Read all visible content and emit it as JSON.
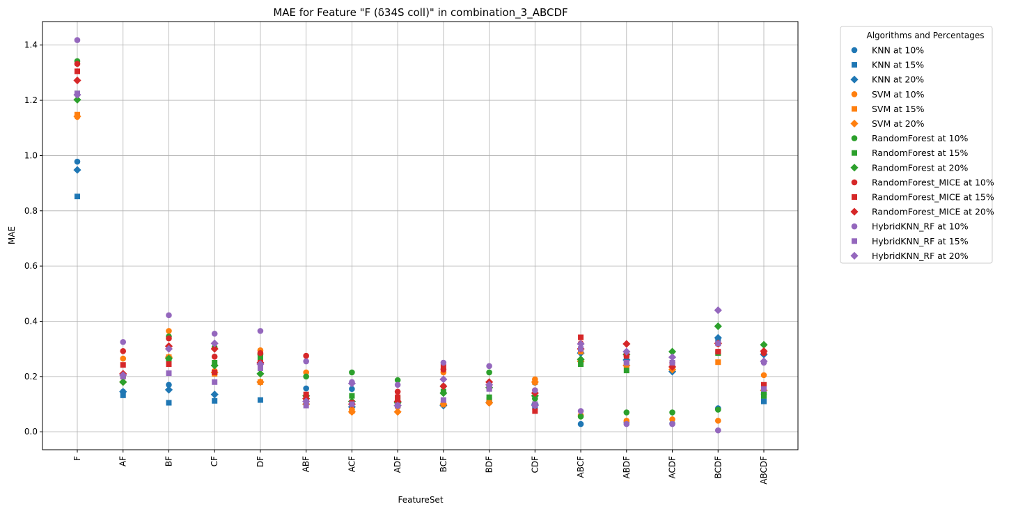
{
  "chart_data": {
    "type": "scatter",
    "title": "MAE for Feature \"F (δ34S coll)\" in combination_3_ABCDF",
    "xlabel": "FeatureSet",
    "ylabel": "MAE",
    "categories": [
      "F",
      "AF",
      "BF",
      "CF",
      "DF",
      "ABF",
      "ACF",
      "ADF",
      "BCF",
      "BDF",
      "CDF",
      "ABCF",
      "ABDF",
      "ACDF",
      "BCDF",
      "ABCDF"
    ],
    "ylim": [
      -0.065,
      1.485
    ],
    "yticks": [
      0.0,
      0.2,
      0.4,
      0.6,
      0.8,
      1.0,
      1.2,
      1.4
    ],
    "ytick_labels": [
      "0.0",
      "0.2",
      "0.4",
      "0.6",
      "0.8",
      "1.0",
      "1.2",
      "1.4"
    ],
    "grid": true,
    "legend_title": "Algorithms and Percentages",
    "legend_position": "outside-right-top",
    "series": [
      {
        "name": "KNN at 10%",
        "marker": "circle",
        "color": "#1f77b4",
        "values": [
          0.978,
          0.145,
          0.17,
          0.21,
          0.18,
          0.157,
          0.155,
          0.09,
          0.1,
          0.11,
          0.178,
          0.028,
          0.035,
          0.03,
          0.085,
          0.135
        ]
      },
      {
        "name": "KNN at 15%",
        "marker": "square",
        "color": "#1f77b4",
        "values": [
          0.852,
          0.132,
          0.105,
          0.112,
          0.115,
          0.115,
          0.1,
          0.095,
          0.1,
          0.115,
          0.09,
          0.29,
          0.25,
          0.23,
          0.33,
          0.11
        ]
      },
      {
        "name": "KNN at 20%",
        "marker": "diamond",
        "color": "#1f77b4",
        "values": [
          0.948,
          0.145,
          0.152,
          0.135,
          0.18,
          0.1,
          0.09,
          0.095,
          0.095,
          0.105,
          0.1,
          0.285,
          0.26,
          0.218,
          0.34,
          0.28
        ]
      },
      {
        "name": "SVM at 10%",
        "marker": "circle",
        "color": "#ff7f0e",
        "values": [
          1.14,
          0.265,
          0.365,
          0.22,
          0.295,
          0.215,
          0.08,
          0.09,
          0.215,
          0.105,
          0.19,
          0.06,
          0.04,
          0.045,
          0.04,
          0.205
        ]
      },
      {
        "name": "SVM at 15%",
        "marker": "square",
        "color": "#ff7f0e",
        "values": [
          1.148,
          0.2,
          0.27,
          0.21,
          0.18,
          0.11,
          0.075,
          0.1,
          0.1,
          0.11,
          0.18,
          0.29,
          0.24,
          0.23,
          0.252,
          0.16
        ]
      },
      {
        "name": "SVM at 20%",
        "marker": "diamond",
        "color": "#ff7f0e",
        "values": [
          1.142,
          0.18,
          0.27,
          0.215,
          0.18,
          0.1,
          0.072,
          0.072,
          0.1,
          0.105,
          0.18,
          0.255,
          0.24,
          0.225,
          0.32,
          0.15
        ]
      },
      {
        "name": "RandomForest at 10%",
        "marker": "circle",
        "color": "#2ca02c",
        "values": [
          1.342,
          0.205,
          0.345,
          0.305,
          0.28,
          0.2,
          0.215,
          0.187,
          0.165,
          0.215,
          0.12,
          0.055,
          0.07,
          0.07,
          0.08,
          0.14
        ]
      },
      {
        "name": "RandomForest at 15%",
        "marker": "square",
        "color": "#2ca02c",
        "values": [
          1.225,
          0.205,
          0.262,
          0.25,
          0.27,
          0.125,
          0.13,
          0.12,
          0.145,
          0.125,
          0.1,
          0.245,
          0.222,
          0.25,
          0.285,
          0.13
        ]
      },
      {
        "name": "RandomForest at 20%",
        "marker": "diamond",
        "color": "#2ca02c",
        "values": [
          1.202,
          0.18,
          0.265,
          0.24,
          0.21,
          0.13,
          0.11,
          0.105,
          0.14,
          0.16,
          0.13,
          0.262,
          0.28,
          0.29,
          0.382,
          0.315
        ]
      },
      {
        "name": "RandomForest_MICE at 10%",
        "marker": "circle",
        "color": "#d62728",
        "values": [
          1.332,
          0.292,
          0.338,
          0.272,
          0.285,
          0.275,
          0.1,
          0.145,
          0.225,
          0.17,
          0.15,
          0.32,
          0.275,
          0.25,
          0.318,
          0.285
        ]
      },
      {
        "name": "RandomForest_MICE at 15%",
        "marker": "square",
        "color": "#d62728",
        "values": [
          1.305,
          0.242,
          0.245,
          0.215,
          0.25,
          0.135,
          0.105,
          0.125,
          0.235,
          0.16,
          0.075,
          0.342,
          0.275,
          0.245,
          0.29,
          0.17
        ]
      },
      {
        "name": "RandomForest_MICE at 20%",
        "marker": "diamond",
        "color": "#d62728",
        "values": [
          1.272,
          0.21,
          0.31,
          0.3,
          0.25,
          0.12,
          0.1,
          0.11,
          0.165,
          0.18,
          0.14,
          0.3,
          0.318,
          0.235,
          0.32,
          0.292
        ]
      },
      {
        "name": "HybridKNN_RF at 10%",
        "marker": "circle",
        "color": "#9467bd",
        "values": [
          1.418,
          0.325,
          0.422,
          0.355,
          0.365,
          0.255,
          0.18,
          0.17,
          0.25,
          0.238,
          0.15,
          0.075,
          0.028,
          0.028,
          0.005,
          0.25
        ]
      },
      {
        "name": "HybridKNN_RF at 15%",
        "marker": "square",
        "color": "#9467bd",
        "values": [
          1.225,
          0.2,
          0.212,
          0.18,
          0.23,
          0.095,
          0.1,
          0.095,
          0.115,
          0.155,
          0.1,
          0.3,
          0.25,
          0.25,
          0.32,
          0.155
        ]
      },
      {
        "name": "HybridKNN_RF at 20%",
        "marker": "diamond",
        "color": "#9467bd",
        "values": [
          1.22,
          0.205,
          0.3,
          0.32,
          0.245,
          0.11,
          0.175,
          0.095,
          0.19,
          0.17,
          0.095,
          0.318,
          0.29,
          0.27,
          0.44,
          0.255
        ]
      }
    ]
  }
}
